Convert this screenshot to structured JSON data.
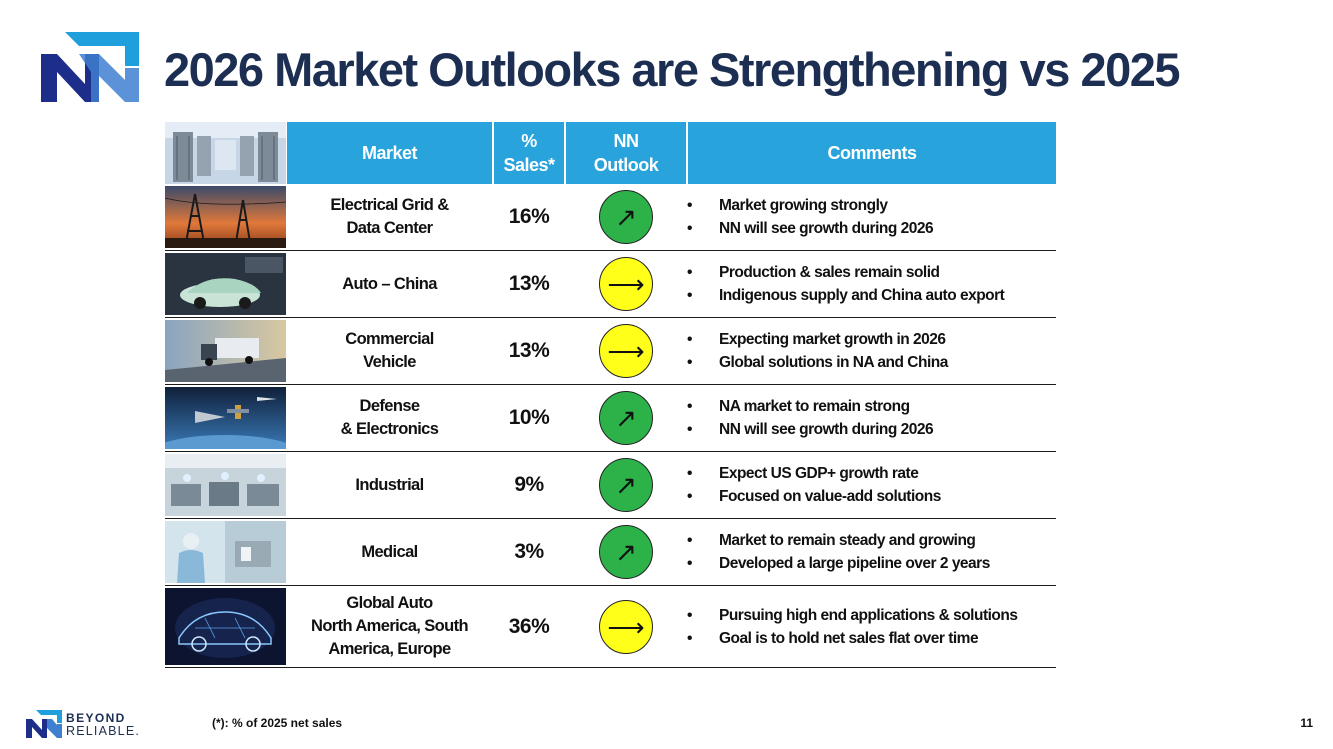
{
  "title": "2026 Market Outlooks are Strengthening vs 2025",
  "colors": {
    "title": "#1c2e52",
    "header_bg": "#29a3dc",
    "outlook_up": "#2db24a",
    "outlook_flat": "#ffff1a"
  },
  "table": {
    "headers": {
      "market": "Market",
      "sales_line1": "%",
      "sales_line2": "Sales*",
      "outlook_line1": "NN",
      "outlook_line2": "Outlook",
      "comments": "Comments"
    },
    "rows": [
      {
        "image": "power-lines-sunset-photo",
        "market": [
          "Electrical Grid &",
          "Data Center"
        ],
        "sales": "16%",
        "outlook": "up",
        "arrow": "↗",
        "comments": [
          "Market growing strongly",
          "NN will see growth during 2026"
        ]
      },
      {
        "image": "ev-car-photo",
        "market": [
          "Auto – China"
        ],
        "sales": "13%",
        "outlook": "flat",
        "arrow": "⟶",
        "comments": [
          "Production & sales remain solid",
          "Indigenous supply and China auto export"
        ]
      },
      {
        "image": "truck-photo",
        "market": [
          "Commercial",
          "Vehicle"
        ],
        "sales": "13%",
        "outlook": "flat",
        "arrow": "⟶",
        "comments": [
          "Expecting market growth in 2026",
          "Global solutions in NA and China"
        ]
      },
      {
        "image": "aircraft-satellite-photo",
        "market": [
          "Defense",
          "& Electronics"
        ],
        "sales": "10%",
        "outlook": "up",
        "arrow": "↗",
        "comments": [
          "NA market to remain strong",
          "NN will see growth during 2026"
        ]
      },
      {
        "image": "factory-floor-photo",
        "market": [
          "Industrial"
        ],
        "sales": "9%",
        "outlook": "up",
        "arrow": "↗",
        "comments": [
          "Expect US GDP+ growth rate",
          "Focused on value-add solutions"
        ]
      },
      {
        "image": "lab-technician-photo",
        "market": [
          "Medical"
        ],
        "sales": "3%",
        "outlook": "up",
        "arrow": "↗",
        "comments": [
          "Market to remain steady and growing",
          "Developed a large pipeline over 2 years"
        ]
      },
      {
        "image": "wireframe-car-photo",
        "market": [
          "Global Auto",
          "North America, South",
          "America, Europe"
        ],
        "sales": "36%",
        "outlook": "flat",
        "arrow": "⟶",
        "comments": [
          "Pursuing high end applications & solutions",
          "Goal is to hold net sales flat over time"
        ]
      }
    ]
  },
  "footer": {
    "brand_line1": "BEYOND",
    "brand_line2": "RELIABLE.",
    "footnote": "(*): % of 2025 net sales",
    "page_number": "11"
  }
}
